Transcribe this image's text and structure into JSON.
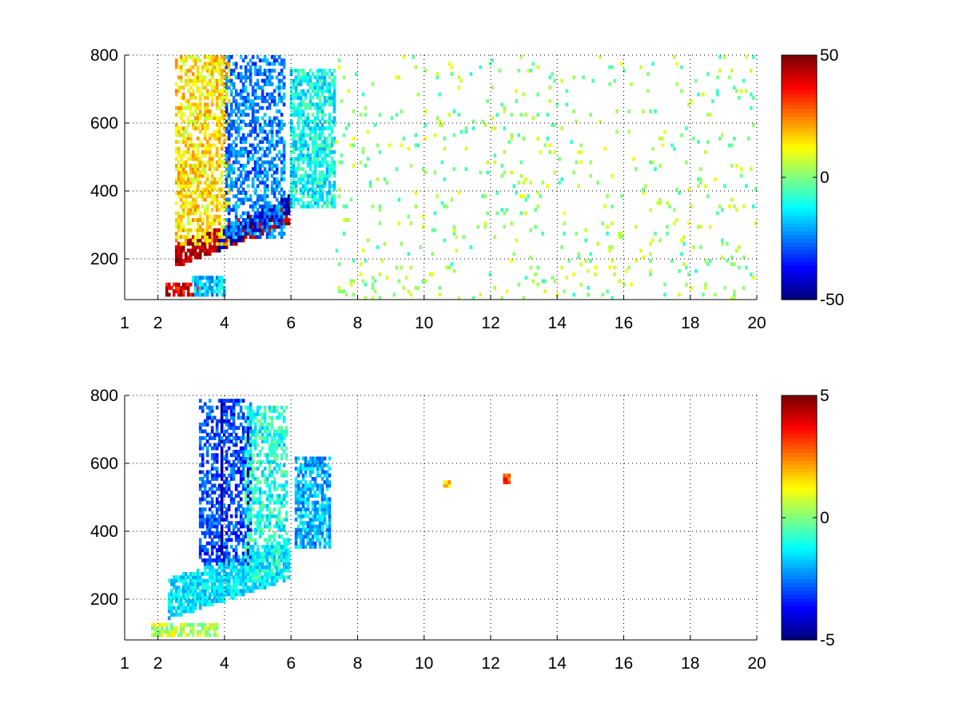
{
  "figure": {
    "background": "#ffffff",
    "colormap": "jet"
  },
  "chart_data": [
    {
      "type": "heatmap",
      "title": "",
      "xlabel": "",
      "ylabel": "",
      "xlim": [
        1,
        20
      ],
      "ylim": [
        80,
        800
      ],
      "xticks": [
        1,
        2,
        4,
        6,
        8,
        10,
        12,
        14,
        16,
        18,
        20
      ],
      "yticks": [
        200,
        400,
        600,
        800
      ],
      "grid": true,
      "colorbar": {
        "min": -50,
        "max": 50,
        "ticks": [
          -50,
          0,
          50
        ]
      },
      "seed": 7,
      "features": [
        {
          "kind": "low_band",
          "x": [
            2.2,
            3.2
          ],
          "y": [
            90,
            130
          ],
          "value": 40
        },
        {
          "kind": "low_band",
          "x": [
            3.0,
            4.0
          ],
          "y": [
            95,
            150
          ],
          "value": -18
        },
        {
          "kind": "diagonal_band",
          "x": [
            2.5,
            6.0
          ],
          "y_start": 210,
          "y_end": 340,
          "width": 70,
          "value": 45
        },
        {
          "kind": "diagonal_band",
          "x": [
            3.8,
            6.0
          ],
          "y_start": 250,
          "y_end": 360,
          "width": 60,
          "value": -45
        },
        {
          "kind": "plume",
          "x": [
            2.5,
            4.2
          ],
          "y": [
            240,
            800
          ],
          "value": 15
        },
        {
          "kind": "plume",
          "x": [
            4.0,
            5.8
          ],
          "y": [
            260,
            800
          ],
          "value": -25
        },
        {
          "kind": "patch",
          "x": [
            6.0,
            7.3
          ],
          "y": [
            350,
            760
          ],
          "value": -12
        },
        {
          "kind": "scatter",
          "x": [
            7.3,
            20
          ],
          "y": [
            80,
            800
          ],
          "value": 2,
          "density": 0.05
        }
      ]
    },
    {
      "type": "heatmap",
      "title": "",
      "xlabel": "",
      "ylabel": "",
      "xlim": [
        1,
        20
      ],
      "ylim": [
        80,
        800
      ],
      "xticks": [
        1,
        2,
        4,
        6,
        8,
        10,
        12,
        14,
        16,
        18,
        20
      ],
      "yticks": [
        200,
        400,
        600,
        800
      ],
      "grid": true,
      "colorbar": {
        "min": -5,
        "max": 5,
        "ticks": [
          -5,
          0,
          5
        ]
      },
      "seed": 13,
      "features": [
        {
          "kind": "low_band",
          "x": [
            1.8,
            3.8
          ],
          "y": [
            95,
            125
          ],
          "value": 0.5
        },
        {
          "kind": "diagonal_band",
          "x": [
            2.3,
            6.0
          ],
          "y_start": 200,
          "y_end": 320,
          "width": 120,
          "value": -1.5
        },
        {
          "kind": "plume",
          "x": [
            3.2,
            4.8
          ],
          "y": [
            300,
            790
          ],
          "value": -3
        },
        {
          "kind": "stripe",
          "x": [
            3.85,
            3.95
          ],
          "y": [
            330,
            780
          ],
          "value": -5
        },
        {
          "kind": "stripe",
          "x": [
            4.65,
            4.75
          ],
          "y": [
            330,
            760
          ],
          "value": -4.5
        },
        {
          "kind": "plume",
          "x": [
            4.6,
            5.9
          ],
          "y": [
            260,
            770
          ],
          "value": -1
        },
        {
          "kind": "patch",
          "x": [
            6.1,
            7.2
          ],
          "y": [
            350,
            620
          ],
          "value": -2
        },
        {
          "kind": "dot",
          "x": [
            10.6,
            10.8
          ],
          "y": [
            530,
            550
          ],
          "value": 1.5
        },
        {
          "kind": "dot",
          "x": [
            12.4,
            12.6
          ],
          "y": [
            540,
            570
          ],
          "value": 3
        }
      ]
    }
  ]
}
